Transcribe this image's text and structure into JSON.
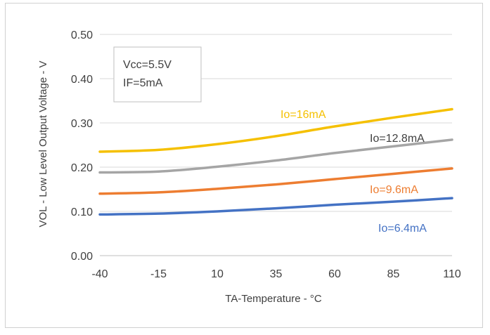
{
  "chart_data": {
    "type": "line",
    "title": "",
    "xlabel": "TA-Temperature - °C",
    "ylabel": "VOL - Low Level Output Voltage - V",
    "x": [
      -40,
      -15,
      10,
      35,
      60,
      85,
      110
    ],
    "x_tick_labels": [
      "-40",
      "-15",
      "10",
      "35",
      "60",
      "85",
      "110"
    ],
    "y_tick_labels": [
      "0.00",
      "0.10",
      "0.20",
      "0.30",
      "0.40",
      "0.50"
    ],
    "xlim": [
      -40,
      110
    ],
    "ylim": [
      0,
      0.5
    ],
    "grid": "horizontal",
    "legend": "none",
    "annotation": [
      "Vcc=5.5V",
      "IF=5mA"
    ],
    "series": [
      {
        "name": "Io=16mA",
        "color": "#f5c000",
        "values": [
          0.235,
          0.239,
          0.252,
          0.27,
          0.292,
          0.312,
          0.331
        ]
      },
      {
        "name": "Io=12.8mA",
        "color": "#a5a5a5",
        "values": [
          0.188,
          0.19,
          0.201,
          0.215,
          0.232,
          0.247,
          0.262
        ]
      },
      {
        "name": "Io=9.6mA",
        "color": "#ed7d31",
        "values": [
          0.14,
          0.143,
          0.151,
          0.161,
          0.173,
          0.185,
          0.197
        ]
      },
      {
        "name": "Io=6.4mA",
        "color": "#4472c4",
        "values": [
          0.093,
          0.095,
          0.1,
          0.107,
          0.115,
          0.122,
          0.13
        ]
      }
    ],
    "series_label_colors": [
      "#f5c000",
      "#404040",
      "#ed7d31",
      "#4472c4"
    ]
  }
}
